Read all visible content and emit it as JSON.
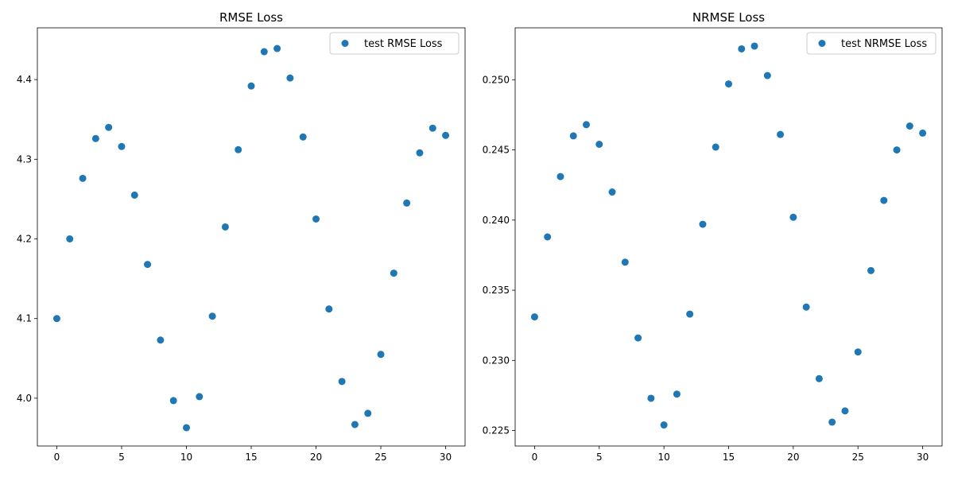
{
  "chart_data": [
    {
      "type": "scatter",
      "title": "RMSE Loss",
      "xlabel": "",
      "ylabel": "",
      "xlim": [
        -1.5,
        31.5
      ],
      "ylim": [
        3.94,
        4.465
      ],
      "xticks": [
        0,
        5,
        10,
        15,
        20,
        25,
        30
      ],
      "yticks": [
        4.0,
        4.1,
        4.2,
        4.3,
        4.4
      ],
      "ytick_labels": [
        "4.0",
        "4.1",
        "4.2",
        "4.3",
        "4.4"
      ],
      "grid": false,
      "legend": "top-right",
      "color": "#1f77b4",
      "series": [
        {
          "name": "test RMSE Loss",
          "x": [
            0,
            1,
            2,
            3,
            4,
            5,
            6,
            7,
            8,
            9,
            10,
            11,
            12,
            13,
            14,
            15,
            16,
            17,
            18,
            19,
            20,
            21,
            22,
            23,
            24,
            25,
            26,
            27,
            28,
            29,
            30
          ],
          "y": [
            4.1,
            4.2,
            4.276,
            4.326,
            4.34,
            4.316,
            4.255,
            4.168,
            4.073,
            3.997,
            3.963,
            4.002,
            4.103,
            4.215,
            4.312,
            4.392,
            4.435,
            4.439,
            4.402,
            4.328,
            4.225,
            4.112,
            4.021,
            3.967,
            3.981,
            4.055,
            4.157,
            4.245,
            4.308,
            4.339,
            4.33
          ]
        }
      ]
    },
    {
      "type": "scatter",
      "title": "NRMSE Loss",
      "xlabel": "",
      "ylabel": "",
      "xlim": [
        -1.5,
        31.5
      ],
      "ylim": [
        0.2239,
        0.2537
      ],
      "xticks": [
        0,
        5,
        10,
        15,
        20,
        25,
        30
      ],
      "yticks": [
        0.225,
        0.23,
        0.235,
        0.24,
        0.245,
        0.25
      ],
      "ytick_labels": [
        "0.225",
        "0.230",
        "0.235",
        "0.240",
        "0.245",
        "0.250"
      ],
      "grid": false,
      "legend": "top-right",
      "color": "#1f77b4",
      "series": [
        {
          "name": "test NRMSE Loss",
          "x": [
            0,
            1,
            2,
            3,
            4,
            5,
            6,
            7,
            8,
            9,
            10,
            11,
            12,
            13,
            14,
            15,
            16,
            17,
            18,
            19,
            20,
            21,
            22,
            23,
            24,
            25,
            26,
            27,
            28,
            29,
            30
          ],
          "y": [
            0.2331,
            0.2388,
            0.2431,
            0.246,
            0.2468,
            0.2454,
            0.242,
            0.237,
            0.2316,
            0.2273,
            0.2254,
            0.2276,
            0.2333,
            0.2397,
            0.2452,
            0.2497,
            0.2522,
            0.2524,
            0.2503,
            0.2461,
            0.2402,
            0.2338,
            0.2287,
            0.2256,
            0.2264,
            0.2306,
            0.2364,
            0.2414,
            0.245,
            0.2467,
            0.2462
          ]
        }
      ]
    }
  ]
}
